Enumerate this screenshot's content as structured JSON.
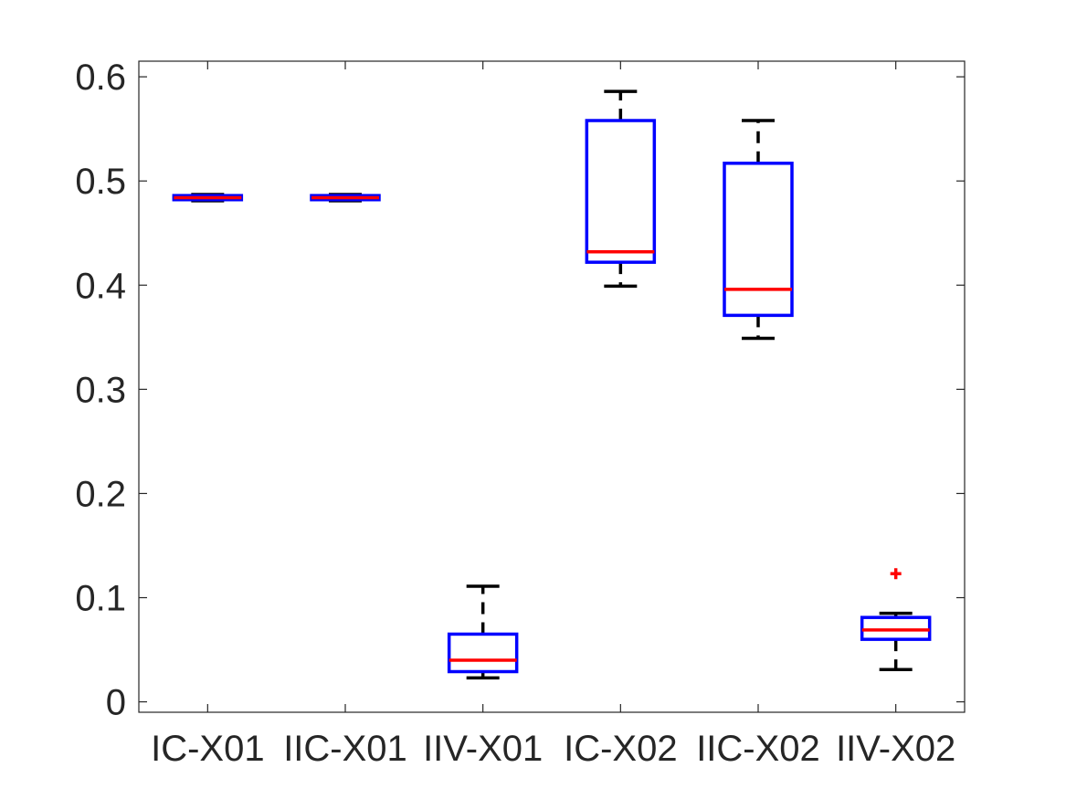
{
  "chart_data": {
    "type": "box",
    "title": "",
    "xlabel": "",
    "ylabel": "",
    "categories": [
      "IC-X01",
      "IIC-X01",
      "IIV-X01",
      "IC-X02",
      "IIC-X02",
      "IIV-X02"
    ],
    "boxes": [
      {
        "category": "IC-X01",
        "whisker_low": 0.481,
        "q1": 0.482,
        "median": 0.484,
        "q3": 0.486,
        "whisker_high": 0.487,
        "outliers": []
      },
      {
        "category": "IIC-X01",
        "whisker_low": 0.481,
        "q1": 0.482,
        "median": 0.484,
        "q3": 0.486,
        "whisker_high": 0.487,
        "outliers": []
      },
      {
        "category": "IIV-X01",
        "whisker_low": 0.023,
        "q1": 0.029,
        "median": 0.04,
        "q3": 0.065,
        "whisker_high": 0.111,
        "outliers": []
      },
      {
        "category": "IC-X02",
        "whisker_low": 0.399,
        "q1": 0.422,
        "median": 0.432,
        "q3": 0.558,
        "whisker_high": 0.586,
        "outliers": []
      },
      {
        "category": "IIC-X02",
        "whisker_low": 0.349,
        "q1": 0.371,
        "median": 0.396,
        "q3": 0.517,
        "whisker_high": 0.558,
        "outliers": []
      },
      {
        "category": "IIV-X02",
        "whisker_low": 0.031,
        "q1": 0.06,
        "median": 0.069,
        "q3": 0.081,
        "whisker_high": 0.085,
        "outliers": [
          0.123
        ]
      }
    ],
    "ylim": [
      -0.01,
      0.615
    ],
    "yticks": [
      0,
      0.1,
      0.2,
      0.3,
      0.4,
      0.5,
      0.6
    ],
    "ytick_labels": [
      "0",
      "0.1",
      "0.2",
      "0.3",
      "0.4",
      "0.5",
      "0.6"
    ],
    "grid": false,
    "colors": {
      "box": "#0000ff",
      "median": "#ff0000",
      "whisker": "#000000",
      "outlier": "#ff0000",
      "axis": "#262626"
    }
  }
}
